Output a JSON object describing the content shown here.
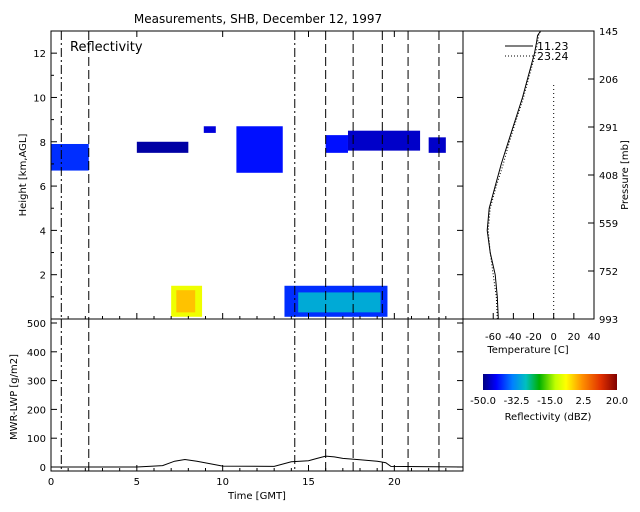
{
  "chart_data": [
    {
      "type": "heatmap",
      "title": "Measurements, SHB, December 12, 1997",
      "annotation": "Reflectivity",
      "xlabel": "",
      "ylabel": "Height [km,AGL]",
      "xlim": [
        0,
        24
      ],
      "ylim": [
        0,
        13
      ],
      "xticks": [
        "0",
        "5",
        "10",
        "15",
        "20"
      ],
      "yticks": [
        "0",
        "2",
        "4",
        "6",
        "8",
        "10",
        "12"
      ],
      "vertical_lines_dash": [
        2.2,
        16.0,
        17.6,
        19.3,
        20.8,
        22.6
      ],
      "vertical_lines_dashdot": [
        0.6,
        14.2
      ],
      "echoes": [
        {
          "x0": 7.0,
          "x1": 8.8,
          "y0": 0.1,
          "y1": 1.5,
          "dbz": -8
        },
        {
          "x0": 7.3,
          "x1": 8.4,
          "y0": 0.3,
          "y1": 1.3,
          "dbz": -2
        },
        {
          "x0": 13.6,
          "x1": 19.6,
          "y0": 0.1,
          "y1": 1.5,
          "dbz": -40
        },
        {
          "x0": 14.4,
          "x1": 19.2,
          "y0": 0.3,
          "y1": 1.2,
          "dbz": -30
        },
        {
          "x0": 0.0,
          "x1": 2.2,
          "y0": 6.7,
          "y1": 7.9,
          "dbz": -40
        },
        {
          "x0": 10.8,
          "x1": 13.5,
          "y0": 6.6,
          "y1": 8.7,
          "dbz": -42
        },
        {
          "x0": 16.0,
          "x1": 17.3,
          "y0": 7.5,
          "y1": 8.3,
          "dbz": -42
        },
        {
          "x0": 8.9,
          "x1": 9.6,
          "y0": 8.4,
          "y1": 8.7,
          "dbz": -45
        },
        {
          "x0": 5.0,
          "x1": 8.0,
          "y0": 7.5,
          "y1": 8.0,
          "dbz": -48
        },
        {
          "x0": 17.3,
          "x1": 21.5,
          "y0": 7.6,
          "y1": 8.5,
          "dbz": -46
        },
        {
          "x0": 22.0,
          "x1": 23.0,
          "y0": 7.5,
          "y1": 8.2,
          "dbz": -46
        }
      ]
    },
    {
      "type": "line",
      "xlabel": "Time [GMT]",
      "ylabel": "MWR-LWP [g/m2]",
      "xlim": [
        0,
        24
      ],
      "ylim": [
        0,
        500
      ],
      "xticks": [
        "0",
        "5",
        "10",
        "15",
        "20"
      ],
      "yticks": [
        "0",
        "100",
        "200",
        "300",
        "400",
        "500"
      ],
      "x": [
        0,
        5,
        6.5,
        7.2,
        7.8,
        8.5,
        9.2,
        10,
        13,
        14,
        15,
        15.5,
        16,
        16.5,
        17,
        18,
        19,
        19.5,
        19.8,
        24
      ],
      "y": [
        0,
        0,
        5,
        20,
        26,
        20,
        12,
        3,
        2,
        18,
        22,
        30,
        38,
        35,
        30,
        25,
        20,
        15,
        2,
        0
      ]
    },
    {
      "type": "line",
      "xlabel": "Temperature [C]",
      "ylabel": "Pressure [mb]",
      "xlim": [
        -90,
        40
      ],
      "xticks": [
        "-60",
        "-40",
        "-20",
        "0",
        "20",
        "40"
      ],
      "yticks": [
        "145",
        "206",
        "291",
        "408",
        "559",
        "752",
        "993"
      ],
      "series": [
        {
          "name": "11.23",
          "x": [
            -55,
            -56,
            -58,
            -63,
            -66,
            -64,
            -58,
            -52,
            -45,
            -38,
            -31,
            -25,
            -22,
            -19,
            -17,
            -16,
            -13,
            -13
          ],
          "y": [
            0,
            1,
            2,
            3,
            4,
            5,
            6,
            7,
            8,
            9,
            10,
            11,
            11.5,
            12,
            12.5,
            12.8,
            13,
            13
          ]
        },
        {
          "name": "23.24",
          "x": [
            -56,
            -57,
            -60,
            -63,
            -65,
            -63,
            -57,
            -50,
            -44,
            -37,
            -30,
            -24,
            -21,
            -18,
            -16,
            -15,
            -13
          ],
          "y": [
            0,
            1,
            2,
            3,
            4,
            5,
            6,
            7,
            8,
            9,
            10,
            11,
            11.5,
            12,
            12.5,
            12.8,
            13
          ]
        }
      ],
      "zero_line": 0
    }
  ],
  "colorbar": {
    "label": "Reflectivity (dBZ)",
    "min": -50,
    "max": 20,
    "tick_labels": [
      "-50.0",
      "-32.5",
      "-15.0",
      "2.5",
      "20.0"
    ]
  }
}
